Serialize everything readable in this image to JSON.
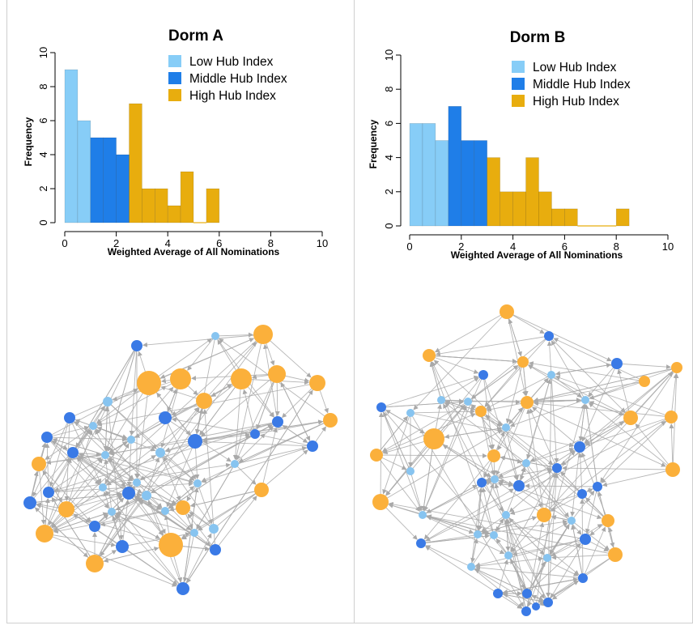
{
  "colors": {
    "low": "#87cdf7",
    "middle": "#1f7ee8",
    "high": "#e8ad0e",
    "node_low": "#87c4f0",
    "node_middle": "#3a7ae6",
    "node_high": "#fbb03b",
    "edge": "#a9a9a9"
  },
  "chart_data": [
    {
      "type": "bar",
      "title": "Dorm A",
      "xlabel": "Weighted Average of All Nominations",
      "ylabel": "Frequency",
      "xlim": [
        0,
        10
      ],
      "ylim": [
        0,
        10
      ],
      "xticks": [
        "0",
        "2",
        "4",
        "6",
        "8",
        "10"
      ],
      "yticks": [
        "0",
        "2",
        "4",
        "6",
        "8",
        "10"
      ],
      "bin_width": 0.5,
      "legend_position": "top-right",
      "legend": [
        {
          "label": "Low Hub Index",
          "color_key": "low"
        },
        {
          "label": "Middle Hub Index",
          "color_key": "middle"
        },
        {
          "label": "High Hub Index",
          "color_key": "high"
        }
      ],
      "bins": [
        {
          "x0": 0.0,
          "value": 9,
          "group": "low"
        },
        {
          "x0": 0.5,
          "value": 6,
          "group": "low"
        },
        {
          "x0": 1.0,
          "value": 5,
          "group": "middle"
        },
        {
          "x0": 1.5,
          "value": 5,
          "group": "middle"
        },
        {
          "x0": 2.0,
          "value": 4,
          "group": "middle"
        },
        {
          "x0": 2.5,
          "value": 7,
          "group": "high"
        },
        {
          "x0": 3.0,
          "value": 2,
          "group": "high"
        },
        {
          "x0": 3.5,
          "value": 2,
          "group": "high"
        },
        {
          "x0": 4.0,
          "value": 1,
          "group": "high"
        },
        {
          "x0": 4.5,
          "value": 3,
          "group": "high"
        },
        {
          "x0": 5.0,
          "value": 0,
          "group": "high"
        },
        {
          "x0": 5.5,
          "value": 2,
          "group": "high"
        }
      ]
    },
    {
      "type": "bar",
      "title": "Dorm B",
      "xlabel": "Weighted Average of All Nominations",
      "ylabel": "Frequency",
      "xlim": [
        0,
        10
      ],
      "ylim": [
        0,
        10
      ],
      "xticks": [
        "0",
        "2",
        "4",
        "6",
        "8",
        "10"
      ],
      "yticks": [
        "0",
        "2",
        "4",
        "6",
        "8",
        "10"
      ],
      "bin_width": 0.5,
      "legend_position": "top-right",
      "legend": [
        {
          "label": "Low Hub Index",
          "color_key": "low"
        },
        {
          "label": "Middle Hub Index",
          "color_key": "middle"
        },
        {
          "label": "High Hub Index",
          "color_key": "high"
        }
      ],
      "bins": [
        {
          "x0": 0.0,
          "value": 6,
          "group": "low"
        },
        {
          "x0": 0.5,
          "value": 6,
          "group": "low"
        },
        {
          "x0": 1.0,
          "value": 5,
          "group": "low"
        },
        {
          "x0": 1.5,
          "value": 7,
          "group": "middle"
        },
        {
          "x0": 2.0,
          "value": 5,
          "group": "middle"
        },
        {
          "x0": 2.5,
          "value": 5,
          "group": "middle"
        },
        {
          "x0": 3.0,
          "value": 4,
          "group": "high"
        },
        {
          "x0": 3.5,
          "value": 2,
          "group": "high"
        },
        {
          "x0": 4.0,
          "value": 2,
          "group": "high"
        },
        {
          "x0": 4.5,
          "value": 4,
          "group": "high"
        },
        {
          "x0": 5.0,
          "value": 2,
          "group": "high"
        },
        {
          "x0": 5.5,
          "value": 1,
          "group": "high"
        },
        {
          "x0": 6.0,
          "value": 1,
          "group": "high"
        },
        {
          "x0": 6.5,
          "value": 0,
          "group": "high"
        },
        {
          "x0": 7.0,
          "value": 0,
          "group": "high"
        },
        {
          "x0": 7.5,
          "value": 0,
          "group": "high"
        },
        {
          "x0": 8.0,
          "value": 1,
          "group": "high"
        }
      ]
    }
  ]
}
